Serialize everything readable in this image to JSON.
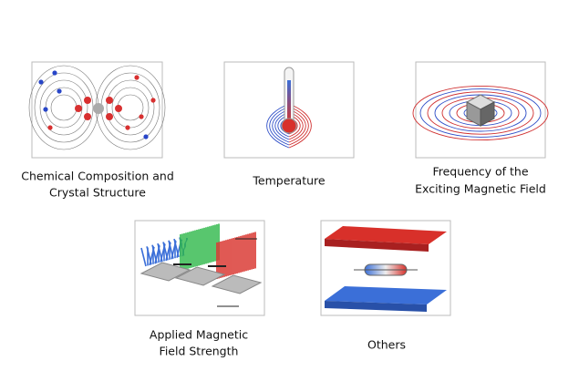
{
  "panels": [
    {
      "caption": [
        "Chemical Composition and",
        "Crystal Structure"
      ]
    },
    {
      "caption": [
        "Temperature"
      ]
    },
    {
      "caption": [
        "Frequency of the",
        "Exciting Magnetic Field"
      ]
    },
    {
      "caption": [
        "Applied Magnetic",
        "Field Strength"
      ]
    },
    {
      "caption": [
        "Others"
      ]
    }
  ]
}
